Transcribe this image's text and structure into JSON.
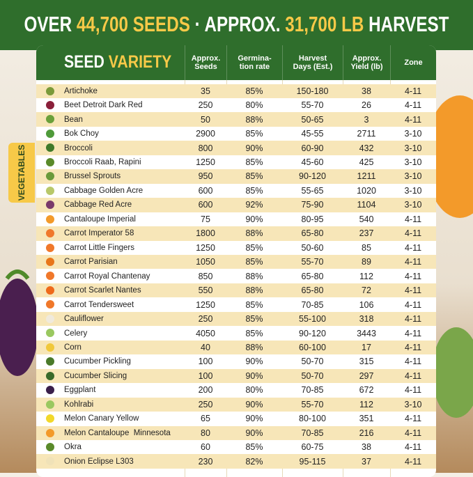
{
  "header": {
    "title": {
      "part1": "OVER",
      "part2": "44,700 SEEDS",
      "part3": "· APPROX.",
      "part4": "31,700 LB",
      "part5": "HARVEST"
    }
  },
  "side_tab": "VEGETABLES",
  "table": {
    "heading": {
      "word1": "SEED",
      "word2": "VARIETY"
    },
    "columns": [
      "Approx.\nSeeds",
      "Germina-\ntion rate",
      "Harvest\nDays (Est.)",
      "Approx.\nYield (lb)",
      "Zone"
    ],
    "rows": [
      [
        "Artichoke",
        "35",
        "85%",
        "150-180",
        "38",
        "4-11"
      ],
      [
        "Beet Detroit Dark Red",
        "250",
        "80%",
        "55-70",
        "26",
        "4-11"
      ],
      [
        "Bean",
        "50",
        "88%",
        "50-65",
        "3",
        "4-11"
      ],
      [
        "Bok Choy",
        "2900",
        "85%",
        "45-55",
        "2711",
        "3-10"
      ],
      [
        "Broccoli",
        "800",
        "90%",
        "60-90",
        "432",
        "3-10"
      ],
      [
        "Broccoli Raab, Rapini",
        "1250",
        "85%",
        "45-60",
        "425",
        "3-10"
      ],
      [
        "Brussel Sprouts",
        "950",
        "85%",
        "90-120",
        "1211",
        "3-10"
      ],
      [
        "Cabbage Golden Acre",
        "600",
        "85%",
        "55-65",
        "1020",
        "3-10"
      ],
      [
        "Cabbage Red Acre",
        "600",
        "92%",
        "75-90",
        "1104",
        "3-10"
      ],
      [
        "Cantaloupe Imperial",
        "75",
        "90%",
        "80-95",
        "540",
        "4-11"
      ],
      [
        "Carrot Imperator 58",
        "1800",
        "88%",
        "65-80",
        "237",
        "4-11"
      ],
      [
        "Carrot Little Fingers",
        "1250",
        "85%",
        "50-60",
        "85",
        "4-11"
      ],
      [
        "Carrot Parisian",
        "1050",
        "85%",
        "55-70",
        "89",
        "4-11"
      ],
      [
        "Carrot Royal Chantenay",
        "850",
        "88%",
        "65-80",
        "112",
        "4-11"
      ],
      [
        "Carrot Scarlet Nantes",
        "550",
        "88%",
        "65-80",
        "72",
        "4-11"
      ],
      [
        "Carrot Tendersweet",
        "1250",
        "85%",
        "70-85",
        "106",
        "4-11"
      ],
      [
        "Cauliflower",
        "250",
        "85%",
        "55-100",
        "318",
        "4-11"
      ],
      [
        "Celery",
        "4050",
        "85%",
        "90-120",
        "3443",
        "4-11"
      ],
      [
        "Corn",
        "40",
        "88%",
        "60-100",
        "17",
        "4-11"
      ],
      [
        "Cucumber Pickling",
        "100",
        "90%",
        "50-70",
        "315",
        "4-11"
      ],
      [
        "Cucumber Slicing",
        "100",
        "90%",
        "50-70",
        "297",
        "4-11"
      ],
      [
        "Eggplant",
        "200",
        "80%",
        "70-85",
        "672",
        "4-11"
      ],
      [
        "Kohlrabi",
        "250",
        "90%",
        "55-70",
        "112",
        "3-10"
      ],
      [
        "Melon Canary Yellow",
        "65",
        "90%",
        "80-100",
        "351",
        "4-11"
      ],
      [
        "Melon Cantaloupe  Minnesota",
        "80",
        "90%",
        "70-85",
        "216",
        "4-11"
      ],
      [
        "Okra",
        "60",
        "85%",
        "60-75",
        "38",
        "4-11"
      ],
      [
        "Onion Eclipse L303",
        "230",
        "82%",
        "95-115",
        "37",
        "4-11"
      ]
    ]
  }
}
